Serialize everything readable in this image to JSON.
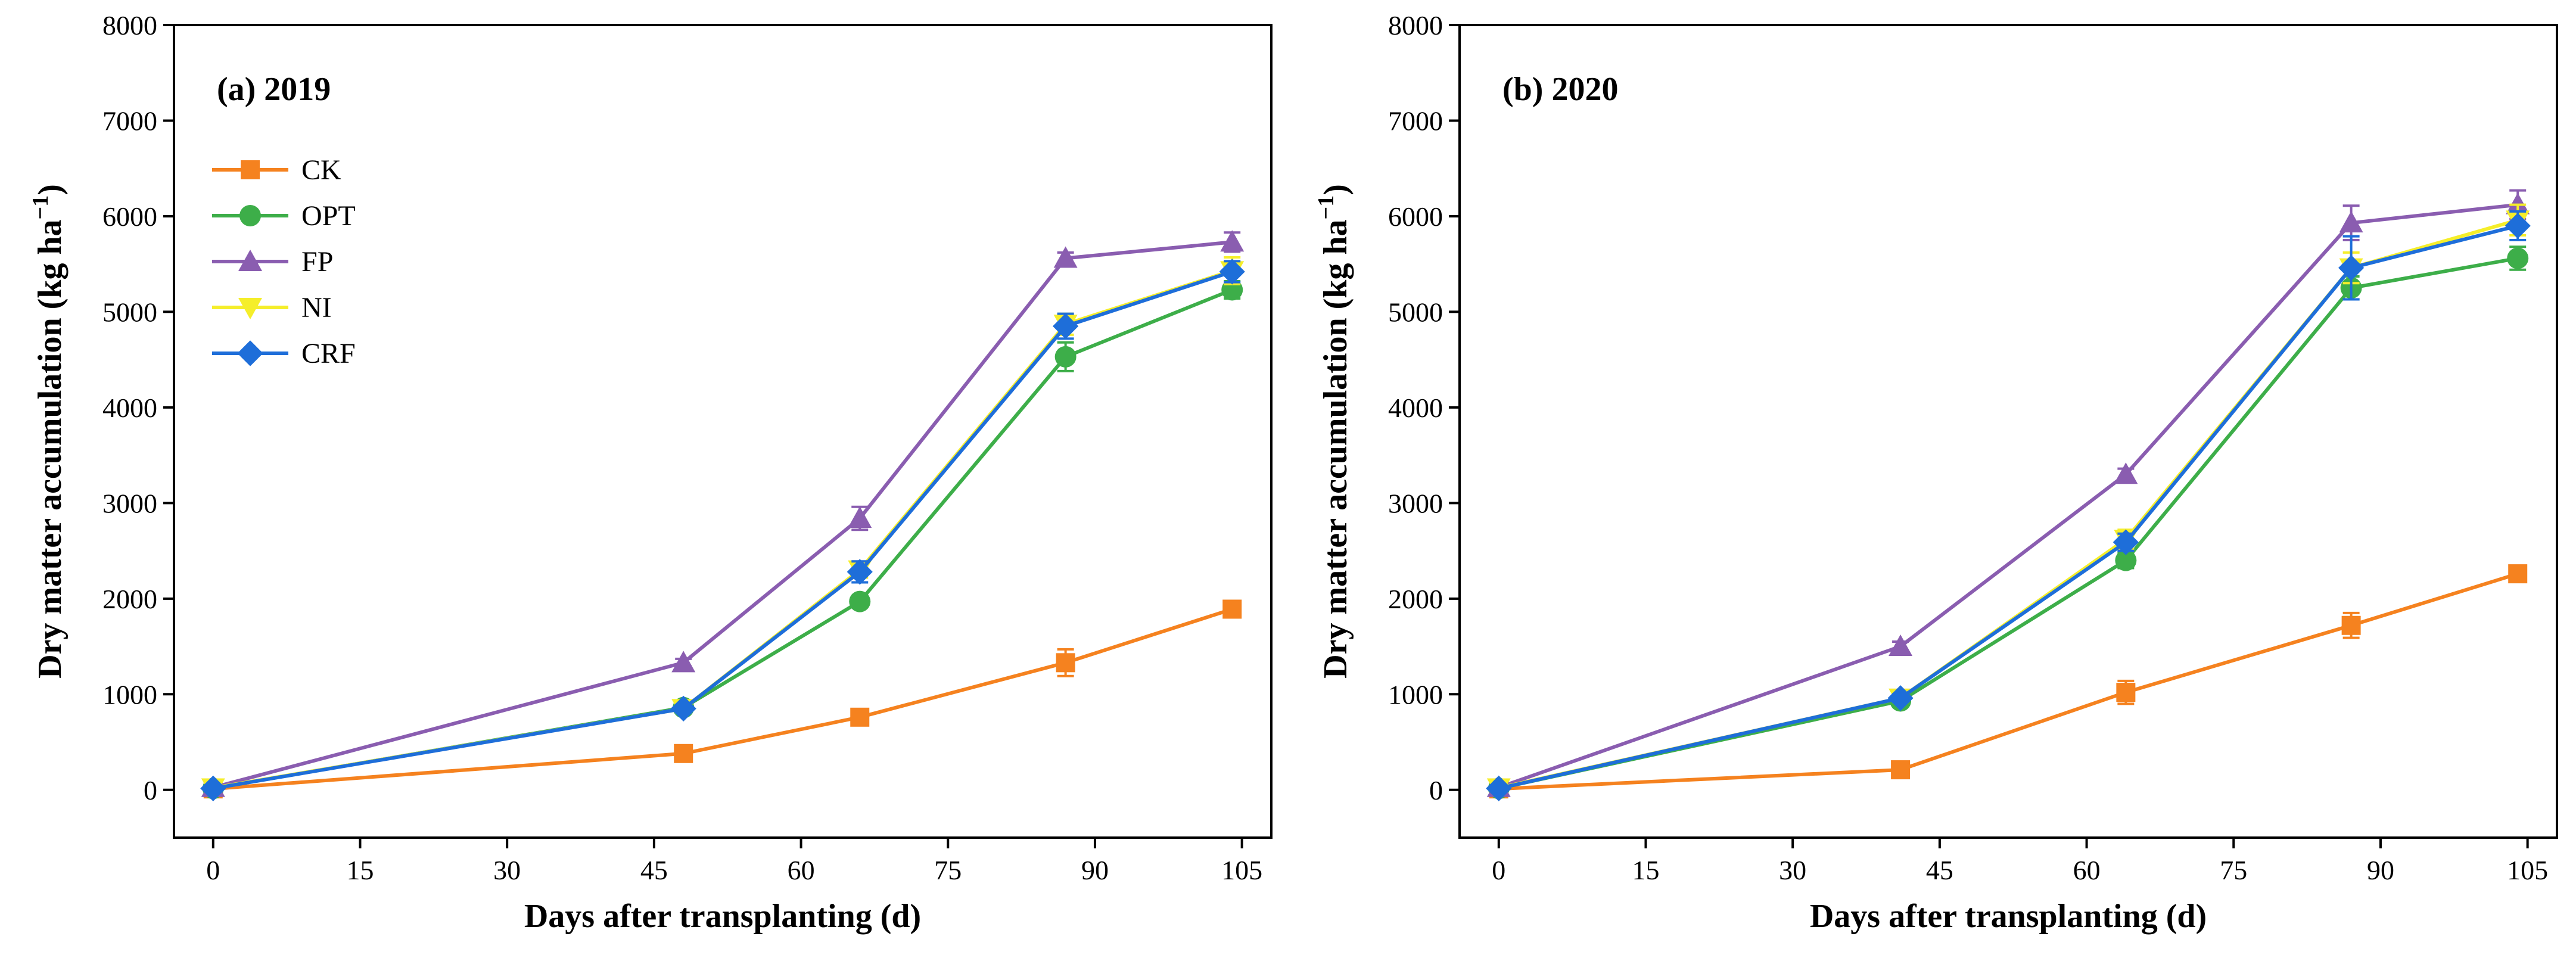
{
  "chart_data": [
    {
      "type": "line",
      "title": "(a) 2019",
      "xlabel": "Days after transplanting (d)",
      "ylabel": "Dry matter accumulation (kg ha",
      "ylabel_sup": "−1",
      "ylabel_end": ")",
      "xlim": [
        -4,
        108
      ],
      "ylim": [
        -500,
        8000
      ],
      "xticks": [
        0,
        15,
        30,
        45,
        60,
        75,
        90,
        105
      ],
      "yticks": [
        0,
        1000,
        2000,
        3000,
        4000,
        5000,
        6000,
        7000,
        8000
      ],
      "x": [
        0,
        48,
        66,
        87,
        104
      ],
      "legend_position": "upper-left",
      "series": [
        {
          "name": "CK",
          "color": "#F5821F",
          "marker": "square",
          "values": [
            10,
            380,
            760,
            1330,
            1890
          ],
          "errors": [
            20,
            40,
            50,
            140,
            60
          ]
        },
        {
          "name": "OPT",
          "color": "#3DAE49",
          "marker": "circle",
          "values": [
            15,
            860,
            1970,
            4530,
            5230
          ],
          "errors": [
            20,
            40,
            60,
            150,
            90
          ]
        },
        {
          "name": "FP",
          "color": "#8A5DB0",
          "marker": "triangle-up",
          "values": [
            25,
            1330,
            2840,
            5560,
            5730
          ],
          "errors": [
            20,
            40,
            120,
            60,
            100
          ]
        },
        {
          "name": "NI",
          "color": "#F5EE2A",
          "marker": "triangle-down",
          "values": [
            20,
            850,
            2300,
            4870,
            5430
          ],
          "errors": [
            20,
            40,
            80,
            110,
            140
          ]
        },
        {
          "name": "CRF",
          "color": "#1E6ED9",
          "marker": "diamond",
          "values": [
            15,
            850,
            2280,
            4850,
            5420
          ],
          "errors": [
            20,
            40,
            110,
            130,
            110
          ]
        }
      ]
    },
    {
      "type": "line",
      "title": "(b) 2020",
      "xlabel": "Days after transplanting (d)",
      "ylabel": "Dry matter accumulation (kg ha",
      "ylabel_sup": "−1",
      "ylabel_end": ")",
      "xlim": [
        -4,
        108
      ],
      "ylim": [
        -500,
        8000
      ],
      "xticks": [
        0,
        15,
        30,
        45,
        60,
        75,
        90,
        105
      ],
      "yticks": [
        0,
        1000,
        2000,
        3000,
        4000,
        5000,
        6000,
        7000,
        8000
      ],
      "x": [
        0,
        41,
        64,
        87,
        104
      ],
      "legend_position": "none",
      "series": [
        {
          "name": "CK",
          "color": "#F5821F",
          "marker": "square",
          "values": [
            10,
            210,
            1020,
            1720,
            2260
          ],
          "errors": [
            20,
            50,
            120,
            130,
            80
          ]
        },
        {
          "name": "OPT",
          "color": "#3DAE49",
          "marker": "circle",
          "values": [
            15,
            930,
            2400,
            5250,
            5560
          ],
          "errors": [
            20,
            40,
            80,
            120,
            120
          ]
        },
        {
          "name": "FP",
          "color": "#8A5DB0",
          "marker": "triangle-up",
          "values": [
            25,
            1500,
            3300,
            5930,
            6120
          ],
          "errors": [
            20,
            50,
            60,
            180,
            150
          ]
        },
        {
          "name": "NI",
          "color": "#F5EE2A",
          "marker": "triangle-down",
          "values": [
            20,
            960,
            2620,
            5460,
            5960
          ],
          "errors": [
            20,
            40,
            100,
            160,
            160
          ]
        },
        {
          "name": "CRF",
          "color": "#1E6ED9",
          "marker": "diamond",
          "values": [
            15,
            960,
            2590,
            5460,
            5900
          ],
          "errors": [
            20,
            40,
            90,
            330,
            150
          ]
        }
      ]
    }
  ]
}
